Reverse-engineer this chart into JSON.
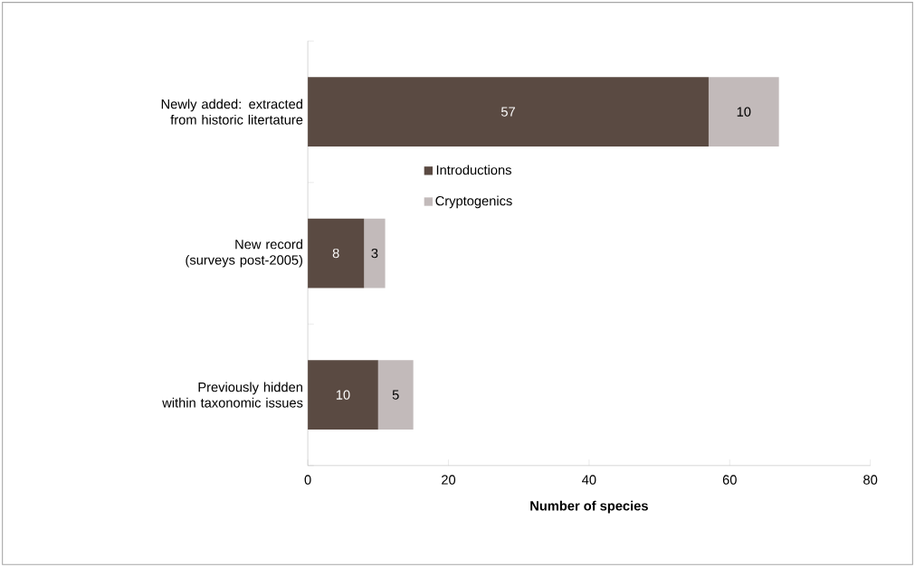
{
  "chart_data": {
    "type": "bar",
    "orientation": "horizontal",
    "stacked": true,
    "categories": [
      "Newly added: extracted from historic litertature",
      "New record (surveys post-2005)",
      "Previously hidden within taxonomic issues"
    ],
    "series": [
      {
        "name": "Introductions",
        "color": "#5a4a42",
        "values": [
          57,
          8,
          10
        ]
      },
      {
        "name": "Cryptogenics",
        "color": "#c2baba",
        "values": [
          10,
          3,
          5
        ]
      }
    ],
    "xlabel": "Number of species",
    "xlim": [
      0,
      80
    ],
    "xticks": [
      0,
      20,
      40,
      60,
      80
    ],
    "data_labels": true,
    "legend": "center",
    "grid": false
  }
}
